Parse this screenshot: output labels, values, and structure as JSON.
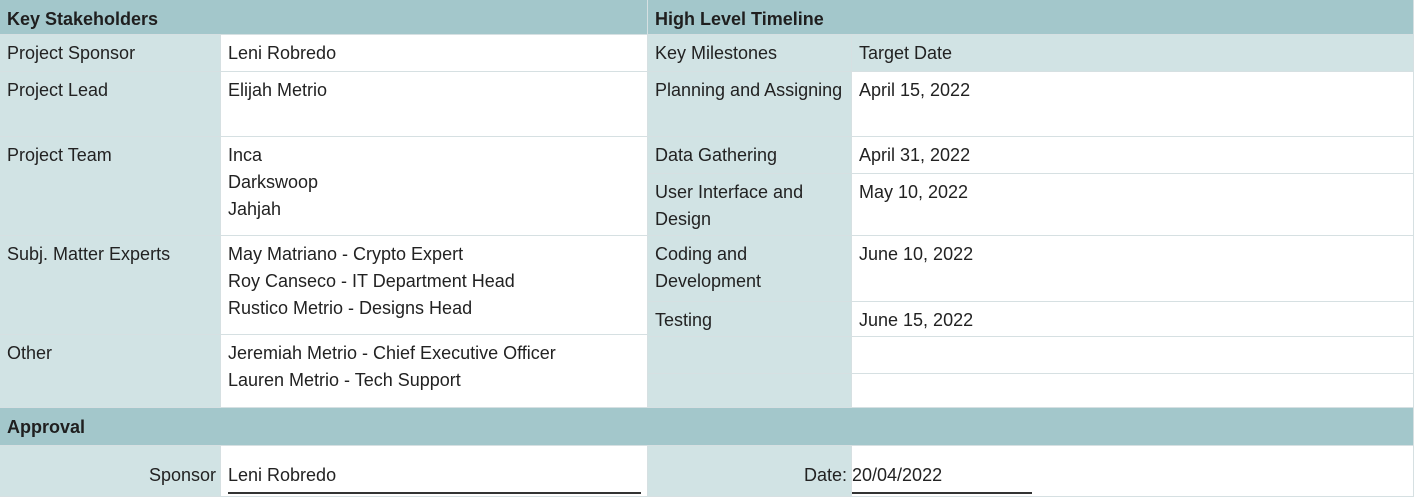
{
  "stakeholders": {
    "header": "Key Stakeholders",
    "rows": [
      {
        "label": "Project Sponsor",
        "values": [
          "Leni Robredo"
        ]
      },
      {
        "label": "Project Lead",
        "values": [
          "Elijah Metrio"
        ]
      },
      {
        "label": "Project Team",
        "values": [
          "Inca",
          "Darkswoop",
          "Jahjah"
        ]
      },
      {
        "label": "Subj. Matter Experts",
        "values": [
          "May Matriano - Crypto Expert",
          "Roy Canseco - IT Department Head",
          "Rustico Metrio - Designs Head"
        ]
      },
      {
        "label": "Other",
        "values": [
          "Jeremiah Metrio - Chief Executive Officer",
          "Lauren Metrio - Tech Support"
        ]
      }
    ]
  },
  "timeline": {
    "header": "High Level Timeline",
    "col_milestone": "Key Milestones",
    "col_date": "Target Date",
    "rows": [
      {
        "milestone": "Planning and Assigning",
        "date": "April 15, 2022"
      },
      {
        "milestone": "Data Gathering",
        "date": "April 31, 2022"
      },
      {
        "milestone": "User Interface and Design",
        "date": "May 10, 2022"
      },
      {
        "milestone": "Coding and Development",
        "date": "June 10, 2022"
      },
      {
        "milestone": "Testing",
        "date": "June 15, 2022"
      }
    ]
  },
  "approval": {
    "header": "Approval",
    "sponsor_label": "Sponsor",
    "sponsor_value": "Leni Robredo",
    "date_label": "Date:",
    "date_value": "20/04/2022"
  },
  "colors": {
    "header": "#a3c7cb",
    "label": "#d1e3e4",
    "value": "#ffffff"
  }
}
